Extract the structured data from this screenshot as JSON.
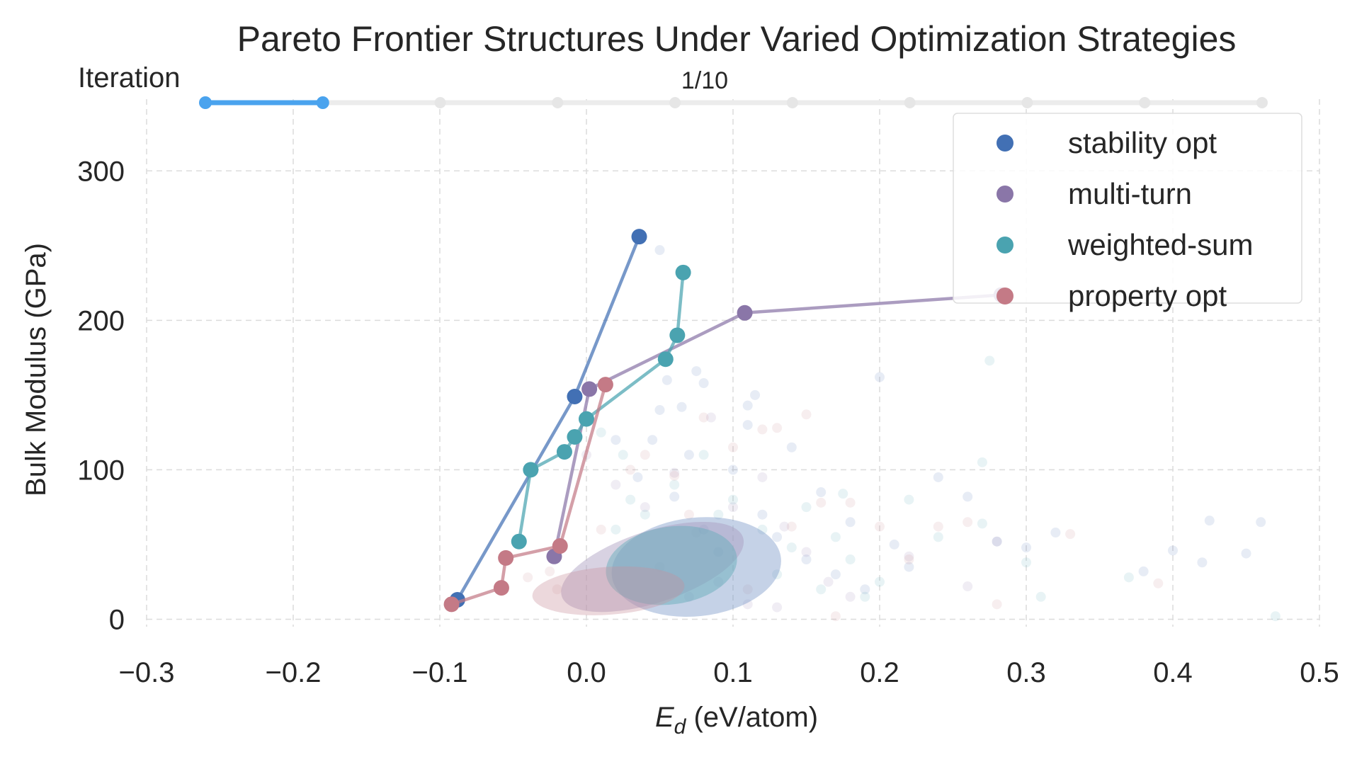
{
  "chart_data": {
    "type": "scatter",
    "title": "Pareto Frontier Structures Under Varied Optimization Strategies",
    "xlabel_symbol": "E",
    "xlabel_sub": "d",
    "xlabel_rest": " (eV/atom)",
    "ylabel": "Bulk Modulus (GPa)",
    "xlim": [
      -0.3,
      0.5
    ],
    "ylim": [
      -5,
      348
    ],
    "xticks": [
      -0.3,
      -0.2,
      -0.1,
      0.0,
      0.1,
      0.2,
      0.3,
      0.4,
      0.5
    ],
    "xtick_labels": [
      "−0.3",
      "−0.2",
      "−0.1",
      "0.0",
      "0.1",
      "0.2",
      "0.3",
      "0.4",
      "0.5"
    ],
    "yticks": [
      0,
      100,
      200,
      300
    ],
    "ytick_labels": [
      "0",
      "100",
      "200",
      "300"
    ],
    "grid": true,
    "legend_position": "top-right",
    "slider": {
      "label": "Iteration",
      "value_text": "1/10",
      "current": 1,
      "total": 10
    },
    "series": [
      {
        "name": "stability opt",
        "color": "#4270b4",
        "frontier": [
          [
            -0.088,
            13
          ],
          [
            -0.008,
            149
          ],
          [
            0.036,
            256
          ]
        ]
      },
      {
        "name": "multi-turn",
        "color": "#8a76a8",
        "frontier": [
          [
            -0.022,
            42
          ],
          [
            0.002,
            154
          ],
          [
            0.108,
            205
          ],
          [
            0.283,
            217
          ]
        ]
      },
      {
        "name": "weighted-sum",
        "color": "#4aa3b0",
        "frontier": [
          [
            -0.046,
            52
          ],
          [
            -0.038,
            100
          ],
          [
            -0.015,
            112
          ],
          [
            -0.008,
            122
          ],
          [
            0.0,
            134
          ],
          [
            0.054,
            174
          ],
          [
            0.062,
            190
          ],
          [
            0.066,
            232
          ]
        ]
      },
      {
        "name": "property opt",
        "color": "#c47a86",
        "frontier": [
          [
            -0.092,
            10
          ],
          [
            -0.058,
            21
          ],
          [
            -0.055,
            41
          ],
          [
            -0.018,
            49
          ],
          [
            0.013,
            157
          ]
        ]
      }
    ],
    "density_ellipses": [
      {
        "series": "stability opt",
        "cx": 0.075,
        "cy": 35,
        "rx": 0.058,
        "ry": 33,
        "angle": 6,
        "color": "#7f9cc9",
        "opacity": 0.45
      },
      {
        "series": "multi-turn",
        "cx": 0.045,
        "cy": 35,
        "rx": 0.065,
        "ry": 24,
        "angle": 18,
        "color": "#a99cbf",
        "opacity": 0.45
      },
      {
        "series": "weighted-sum",
        "cx": 0.058,
        "cy": 36,
        "rx": 0.045,
        "ry": 26,
        "angle": 8,
        "color": "#6aaebb",
        "opacity": 0.5
      },
      {
        "series": "property opt",
        "cx": 0.015,
        "cy": 19,
        "rx": 0.052,
        "ry": 16,
        "angle": 4,
        "color": "#c9909a",
        "opacity": 0.35
      }
    ],
    "background_points": {
      "stability opt": [
        [
          0.02,
          120
        ],
        [
          0.035,
          95
        ],
        [
          0.05,
          140
        ],
        [
          0.06,
          82
        ],
        [
          0.07,
          110
        ],
        [
          0.08,
          60
        ],
        [
          0.09,
          45
        ],
        [
          0.1,
          100
        ],
        [
          0.11,
          130
        ],
        [
          0.12,
          70
        ],
        [
          0.13,
          55
        ],
        [
          0.14,
          115
        ],
        [
          0.15,
          40
        ],
        [
          0.16,
          85
        ],
        [
          0.17,
          30
        ],
        [
          0.18,
          65
        ],
        [
          0.19,
          20
        ],
        [
          0.2,
          162
        ],
        [
          0.21,
          50
        ],
        [
          0.22,
          35
        ],
        [
          0.24,
          95
        ],
        [
          0.26,
          82
        ],
        [
          0.28,
          52
        ],
        [
          0.3,
          48
        ],
        [
          0.32,
          58
        ],
        [
          0.38,
          32
        ],
        [
          0.4,
          46
        ],
        [
          0.42,
          38
        ],
        [
          0.425,
          66
        ],
        [
          0.45,
          44
        ],
        [
          0.46,
          65
        ],
        [
          0.05,
          247
        ],
        [
          0.055,
          160
        ],
        [
          0.075,
          166
        ],
        [
          0.08,
          158
        ],
        [
          0.115,
          150
        ],
        [
          0.11,
          143
        ],
        [
          0.065,
          142
        ],
        [
          0.045,
          120
        ]
      ],
      "multi-turn": [
        [
          0.0,
          110
        ],
        [
          0.02,
          90
        ],
        [
          0.04,
          75
        ],
        [
          0.06,
          98
        ],
        [
          0.075,
          58
        ],
        [
          0.085,
          135
        ],
        [
          0.1,
          75
        ],
        [
          0.12,
          95
        ],
        [
          0.135,
          62
        ],
        [
          0.15,
          45
        ],
        [
          0.165,
          25
        ],
        [
          0.18,
          15
        ],
        [
          0.28,
          52
        ],
        [
          0.22,
          42
        ],
        [
          0.26,
          22
        ],
        [
          0.05,
          35
        ],
        [
          0.07,
          15
        ],
        [
          0.09,
          25
        ],
        [
          0.11,
          10
        ],
        [
          0.13,
          8
        ]
      ],
      "weighted-sum": [
        [
          0.02,
          60
        ],
        [
          0.03,
          80
        ],
        [
          0.04,
          70
        ],
        [
          0.06,
          90
        ],
        [
          0.08,
          110
        ],
        [
          0.1,
          80
        ],
        [
          0.12,
          60
        ],
        [
          0.14,
          48
        ],
        [
          0.16,
          20
        ],
        [
          0.18,
          40
        ],
        [
          0.19,
          15
        ],
        [
          0.2,
          25
        ],
        [
          0.22,
          80
        ],
        [
          0.24,
          55
        ],
        [
          0.27,
          105
        ],
        [
          0.27,
          64
        ],
        [
          0.3,
          38
        ],
        [
          0.31,
          15
        ],
        [
          0.37,
          28
        ],
        [
          0.47,
          2
        ],
        [
          0.275,
          173
        ],
        [
          0.01,
          125
        ],
        [
          0.025,
          110
        ],
        [
          0.09,
          70
        ],
        [
          0.13,
          30
        ],
        [
          0.15,
          75
        ],
        [
          0.17,
          55
        ],
        [
          0.175,
          84
        ]
      ],
      "property opt": [
        [
          -0.04,
          28
        ],
        [
          -0.02,
          20
        ],
        [
          0.01,
          60
        ],
        [
          0.03,
          100
        ],
        [
          0.06,
          96
        ],
        [
          0.08,
          135
        ],
        [
          0.1,
          115
        ],
        [
          0.12,
          127
        ],
        [
          0.14,
          62
        ],
        [
          0.16,
          78
        ],
        [
          0.18,
          78
        ],
        [
          0.2,
          62
        ],
        [
          0.22,
          40
        ],
        [
          0.24,
          62
        ],
        [
          0.26,
          65
        ],
        [
          0.33,
          57
        ],
        [
          0.39,
          24
        ],
        [
          0.28,
          10
        ],
        [
          0.17,
          2
        ],
        [
          0.04,
          110
        ],
        [
          0.07,
          70
        ],
        [
          0.13,
          128
        ],
        [
          0.15,
          137
        ],
        [
          0.11,
          20
        ],
        [
          -0.025,
          32
        ]
      ]
    }
  }
}
